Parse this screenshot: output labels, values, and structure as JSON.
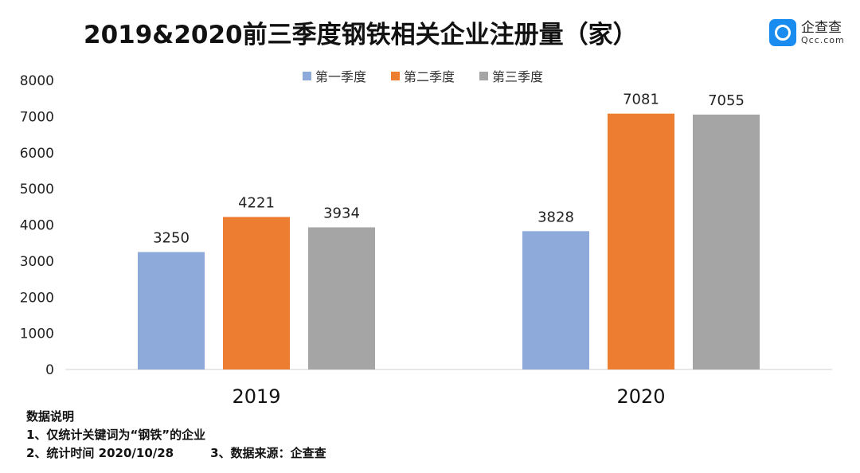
{
  "chart_data": {
    "type": "bar",
    "title": "2019&2020前三季度钢铁相关企业注册量（家）",
    "categories": [
      "2019",
      "2020"
    ],
    "series": [
      {
        "name": "第一季度",
        "color": "#8eaadb",
        "values": [
          3250,
          3828
        ]
      },
      {
        "name": "第二季度",
        "color": "#ed7d31",
        "values": [
          4221,
          7081
        ]
      },
      {
        "name": "第三季度",
        "color": "#a5a5a5",
        "values": [
          3934,
          7055
        ]
      }
    ],
    "ylim": [
      0,
      8000
    ],
    "yticks": [
      "0",
      "1000",
      "2000",
      "3000",
      "4000",
      "5000",
      "6000",
      "7000",
      "8000"
    ],
    "grid": false,
    "legend": "top-center",
    "data_labels": true
  },
  "logo": {
    "name": "企查查",
    "sub": "Qcc.com"
  },
  "notes": {
    "heading": "数据说明",
    "line1": "1、仅统计关键词为“钢铁”的企业",
    "line2a": "2、统计时间 2020/10/28",
    "line2b": "3、数据来源：企查查"
  }
}
